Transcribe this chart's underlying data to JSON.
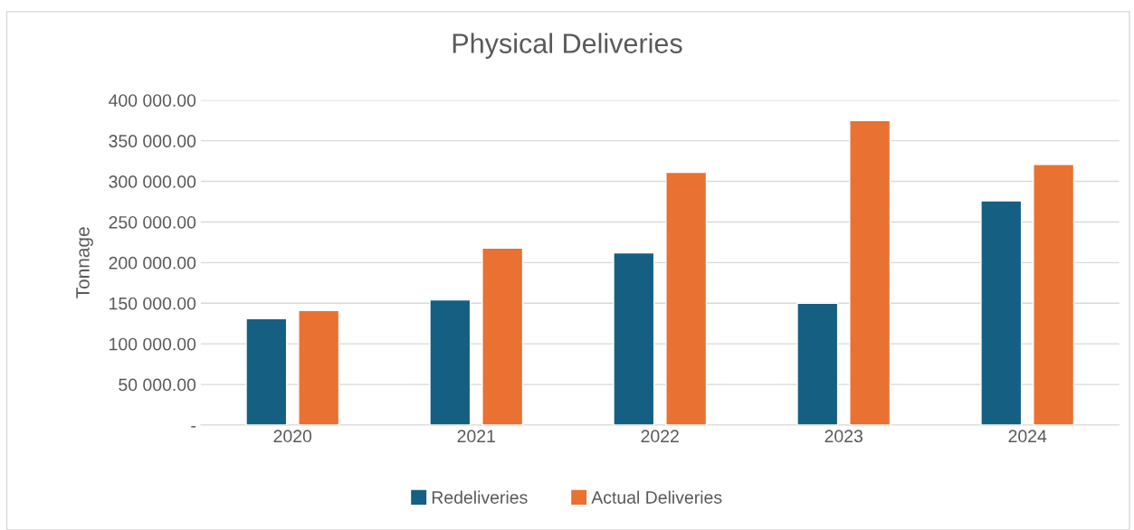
{
  "chart_data": {
    "type": "bar",
    "title": "Physical Deliveries",
    "ylabel": "Tonnage",
    "categories": [
      "2020",
      "2021",
      "2022",
      "2023",
      "2024"
    ],
    "series": [
      {
        "name": "Redeliveries",
        "color": "#156082",
        "values": [
          131000,
          154000,
          212000,
          150000,
          276000
        ]
      },
      {
        "name": "Actual Deliveries",
        "color": "#e97132",
        "values": [
          141000,
          218000,
          311000,
          375000,
          321000
        ]
      }
    ],
    "ylim": [
      0,
      400000
    ],
    "yticks": [
      {
        "value": 0,
        "label": "-"
      },
      {
        "value": 50000,
        "label": "50 000.00"
      },
      {
        "value": 100000,
        "label": "100 000.00"
      },
      {
        "value": 150000,
        "label": "150 000.00"
      },
      {
        "value": 200000,
        "label": "200 000.00"
      },
      {
        "value": 250000,
        "label": "250 000.00"
      },
      {
        "value": 300000,
        "label": "300 000.00"
      },
      {
        "value": 350000,
        "label": "350 000.00"
      },
      {
        "value": 400000,
        "label": "400 000.00"
      }
    ],
    "grid": "y",
    "legend": "bottom"
  }
}
